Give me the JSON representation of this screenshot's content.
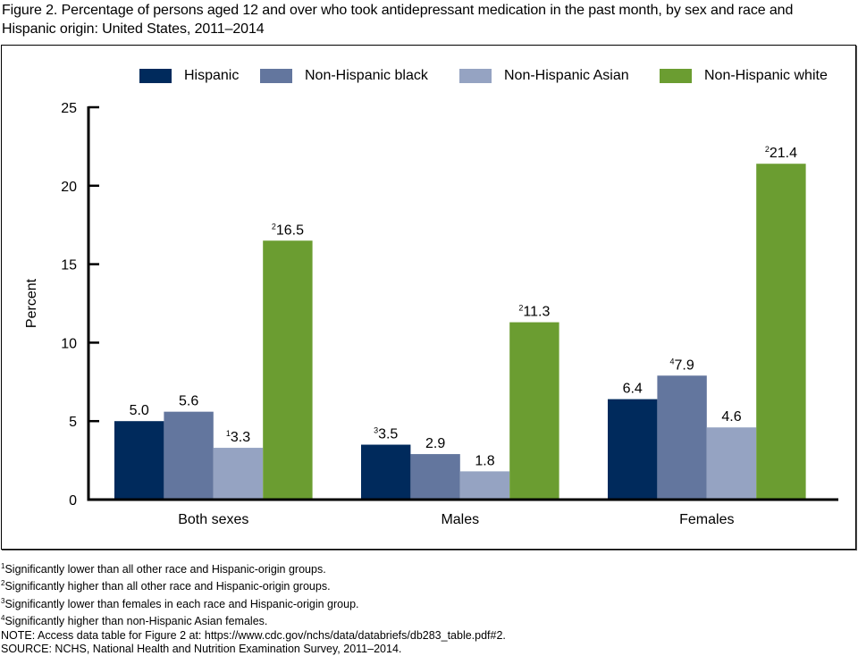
{
  "figure": {
    "title": "Figure 2. Percentage of persons aged 12 and over who took antidepressant medication in the past month, by sex and race and Hispanic origin: United States, 2011–2014"
  },
  "chart_data": {
    "type": "bar",
    "title": "Figure 2. Percentage of persons aged 12 and over who took antidepressant medication in the past month, by sex and race and Hispanic origin: United States, 2011–2014",
    "xlabel": "",
    "ylabel": "Percent",
    "ylim": [
      0,
      25
    ],
    "yticks": [
      0,
      5,
      10,
      15,
      20,
      25
    ],
    "grid": false,
    "legend_position": "top",
    "categories": [
      "Both sexes",
      "Males",
      "Females"
    ],
    "series": [
      {
        "name": "Hispanic",
        "color": "#002a5c",
        "values": [
          5.0,
          3.5,
          6.4
        ],
        "labels": [
          "5.0",
          "3.5",
          "6.4"
        ],
        "footnote_marks": [
          "",
          "3",
          ""
        ]
      },
      {
        "name": "Non-Hispanic black",
        "color": "#63769e",
        "values": [
          5.6,
          2.9,
          7.9
        ],
        "labels": [
          "5.6",
          "2.9",
          "7.9"
        ],
        "footnote_marks": [
          "",
          "",
          "4"
        ]
      },
      {
        "name": "Non-Hispanic Asian",
        "color": "#95a3c2",
        "values": [
          3.3,
          1.8,
          4.6
        ],
        "labels": [
          "3.3",
          "1.8",
          "4.6"
        ],
        "footnote_marks": [
          "1",
          "",
          ""
        ]
      },
      {
        "name": "Non-Hispanic white",
        "color": "#6b9d31",
        "values": [
          16.5,
          11.3,
          21.4
        ],
        "labels": [
          "16.5",
          "11.3",
          "21.4"
        ],
        "footnote_marks": [
          "2",
          "2",
          "2"
        ]
      }
    ]
  },
  "footnotes": [
    {
      "mark": "1",
      "text": "Significantly lower than all other race and Hispanic-origin groups."
    },
    {
      "mark": "2",
      "text": "Significantly higher than all other race and Hispanic-origin groups."
    },
    {
      "mark": "3",
      "text": "Significantly lower than females in each race and Hispanic-origin group."
    },
    {
      "mark": "4",
      "text": "Significantly higher than non-Hispanic Asian females."
    }
  ],
  "note": "NOTE: Access data table for Figure 2 at: https://www.cdc.gov/nchs/data/databriefs/db283_table.pdf#2.",
  "source": "SOURCE: NCHS, National Health and Nutrition Examination Survey, 2011–2014."
}
